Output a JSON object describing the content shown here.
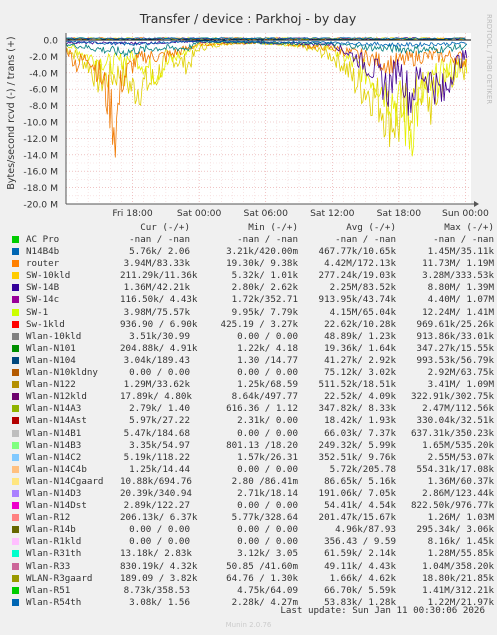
{
  "chart_data": {
    "type": "line",
    "title": "Transfer / device : Parkhoj - by day",
    "ylabel": "Bytes/second rcvd (-) / trans (+)",
    "side_label": "RRDTOOL / TOBI OETIKER",
    "ylim": [
      -20,
      0.8
    ],
    "yticks": [
      0.0,
      -2.0,
      -4.0,
      -6.0,
      -8.0,
      -10.0,
      -12.0,
      -14.0,
      -16.0,
      -18.0,
      -20.0
    ],
    "ytick_labels": [
      "0.0",
      "-2.0 M",
      "-4.0 M",
      "-6.0 M",
      "-8.0 M",
      "-10.0 M",
      "-12.0 M",
      "-14.0 M",
      "-16.0 M",
      "-18.0 M",
      "-20.0 M"
    ],
    "x_ticks": [
      "Fri 18:00",
      "Sat 00:00",
      "Sat 06:00",
      "Sat 12:00",
      "Sat 18:00",
      "Sun 00:00"
    ],
    "x_tick_hours": [
      6,
      12,
      18,
      24,
      30,
      36
    ],
    "xlim_hours": [
      0,
      36.5
    ],
    "grid": true,
    "legend_placement": "bottom",
    "series_profiles": [
      {
        "name": "SW-10kld",
        "color": "#e0d000",
        "points": [
          [
            0,
            -1
          ],
          [
            2,
            -3
          ],
          [
            3,
            -5
          ],
          [
            5,
            -4
          ],
          [
            6,
            -6
          ],
          [
            8,
            -5
          ],
          [
            9,
            -2
          ],
          [
            11,
            -3
          ],
          [
            12,
            -1
          ],
          [
            14,
            -0.5
          ],
          [
            16,
            -0.3
          ],
          [
            18,
            -0.4
          ],
          [
            20,
            -0.5
          ],
          [
            22,
            -1
          ],
          [
            24,
            -2
          ],
          [
            25,
            -3
          ],
          [
            26,
            -5
          ],
          [
            27,
            -6
          ],
          [
            28,
            -7
          ],
          [
            29,
            -9
          ],
          [
            30,
            -10
          ],
          [
            31,
            -8
          ],
          [
            32,
            -6
          ],
          [
            33,
            -8
          ],
          [
            34,
            -5
          ],
          [
            35,
            -4
          ],
          [
            36,
            -3.5
          ]
        ]
      },
      {
        "name": "Sw-1",
        "color": "#e6f000",
        "points": [
          [
            0,
            -0.5
          ],
          [
            2,
            -2
          ],
          [
            4,
            -3
          ],
          [
            6,
            -2
          ],
          [
            8,
            -4
          ],
          [
            10,
            -2
          ],
          [
            12,
            -0.5
          ],
          [
            18,
            -0.3
          ],
          [
            24,
            -1
          ],
          [
            26,
            -3
          ],
          [
            28,
            -5
          ],
          [
            30,
            -8
          ],
          [
            31,
            -11
          ],
          [
            32,
            -7
          ],
          [
            34,
            -4
          ],
          [
            36,
            -3
          ]
        ]
      },
      {
        "name": "router",
        "color": "#f07800",
        "points": [
          [
            0,
            -1
          ],
          [
            1,
            -3
          ],
          [
            2,
            -2
          ],
          [
            3,
            -4
          ],
          [
            4,
            -8
          ],
          [
            4.5,
            -11
          ],
          [
            5,
            -5
          ],
          [
            6,
            -3
          ],
          [
            7,
            -2
          ],
          [
            9,
            -2
          ],
          [
            12,
            -0.5
          ],
          [
            18,
            -0.3
          ],
          [
            20,
            -0.5
          ],
          [
            24,
            -1
          ],
          [
            27,
            -2
          ],
          [
            29,
            -3
          ],
          [
            32,
            -2
          ],
          [
            35,
            -2
          ],
          [
            36,
            -2.5
          ]
        ]
      },
      {
        "name": "SW-14B",
        "color": "#400090",
        "points": [
          [
            0,
            -0.3
          ],
          [
            6,
            -0.4
          ],
          [
            12,
            -0.2
          ],
          [
            24,
            -0.5
          ],
          [
            26,
            -2
          ],
          [
            27,
            -3
          ],
          [
            28,
            -4
          ],
          [
            29,
            -6
          ],
          [
            30,
            -3
          ],
          [
            31,
            -7
          ],
          [
            32,
            -4
          ],
          [
            33,
            -5
          ],
          [
            34,
            -7
          ],
          [
            35,
            -3
          ],
          [
            36,
            -2
          ]
        ]
      },
      {
        "name": "Wlan-N104",
        "color": "#008080",
        "points": [
          [
            0,
            -0.5
          ],
          [
            5,
            -1.5
          ],
          [
            8,
            -1
          ],
          [
            11,
            -1
          ],
          [
            12,
            -0.2
          ],
          [
            24,
            -0.5
          ],
          [
            28,
            -1
          ],
          [
            33,
            -1.2
          ],
          [
            36,
            -0.8
          ]
        ]
      },
      {
        "name": "N14B4b",
        "color": "#0066b3",
        "points": [
          [
            0,
            -0.2
          ],
          [
            6,
            -0.5
          ],
          [
            12,
            -0.1
          ],
          [
            24,
            -0.3
          ],
          [
            30,
            -0.6
          ],
          [
            36,
            -0.4
          ]
        ]
      }
    ],
    "legend_headers": [
      "Cur (-/+)",
      "Min (-/+)",
      "Avg (-/+)",
      "Max (-/+)"
    ],
    "legend": [
      {
        "name": "AC Pro",
        "color": "#00cc00",
        "cur": "-nan / -nan",
        "min": "-nan / -nan",
        "avg": "-nan / -nan",
        "max": "-nan / -nan"
      },
      {
        "name": "N14B4b",
        "color": "#0066b3",
        "cur": "5.76k/ 2.06",
        "min": "3.21k/420.00m",
        "avg": "467.77k/10.65k",
        "max": "1.45M/35.11k"
      },
      {
        "name": "router",
        "color": "#ff8000",
        "cur": "3.94M/83.33k",
        "min": "19.30k/ 9.38k",
        "avg": "4.42M/172.13k",
        "max": "11.73M/ 1.19M"
      },
      {
        "name": "SW-10kld",
        "color": "#ffcc00",
        "cur": "211.29k/11.36k",
        "min": "5.32k/ 1.01k",
        "avg": "277.24k/19.03k",
        "max": "3.28M/333.53k"
      },
      {
        "name": "SW-14B",
        "color": "#330099",
        "cur": "1.36M/42.21k",
        "min": "2.80k/ 2.62k",
        "avg": "2.25M/83.52k",
        "max": "8.80M/ 1.39M"
      },
      {
        "name": "SW-14c",
        "color": "#990099",
        "cur": "116.50k/ 4.43k",
        "min": "1.72k/352.71",
        "avg": "913.95k/43.74k",
        "max": "4.40M/ 1.07M"
      },
      {
        "name": "SW-1",
        "color": "#ccff00",
        "cur": "3.98M/75.57k",
        "min": "9.95k/ 7.79k",
        "avg": "4.15M/65.04k",
        "max": "12.24M/ 1.41M"
      },
      {
        "name": "Sw-1kld",
        "color": "#ff0000",
        "cur": "936.90 / 6.90k",
        "min": "425.19 / 3.27k",
        "avg": "22.62k/10.28k",
        "max": "969.61k/25.26k"
      },
      {
        "name": "Wlan-10kld",
        "color": "#808080",
        "cur": "3.51k/30.99",
        "min": "0.00 / 0.00",
        "avg": "48.89k/ 1.23k",
        "max": "913.86k/33.01k"
      },
      {
        "name": "Wlan-N101",
        "color": "#008f00",
        "cur": "204.88k/ 4.91k",
        "min": "1.22k/ 4.18",
        "avg": "19.36k/ 1.64k",
        "max": "347.27k/15.55k"
      },
      {
        "name": "Wlan-N104",
        "color": "#00487d",
        "cur": "3.04k/189.43",
        "min": "1.30 /14.77",
        "avg": "41.27k/ 2.92k",
        "max": "993.53k/56.79k"
      },
      {
        "name": "Wlan-N10kldny",
        "color": "#b35a00",
        "cur": "0.00 / 0.00",
        "min": "0.00 / 0.00",
        "avg": "75.12k/ 3.02k",
        "max": "2.92M/63.75k"
      },
      {
        "name": "Wlan-N122",
        "color": "#b38f00",
        "cur": "1.29M/33.62k",
        "min": "1.25k/68.59",
        "avg": "511.52k/18.51k",
        "max": "3.41M/ 1.09M"
      },
      {
        "name": "Wlan-N12kld",
        "color": "#6b006b",
        "cur": "17.89k/ 4.80k",
        "min": "8.64k/497.77",
        "avg": "22.52k/ 4.09k",
        "max": "322.91k/302.75k"
      },
      {
        "name": "Wlan-N14A3",
        "color": "#8fb300",
        "cur": "2.79k/ 1.40",
        "min": "616.36 / 1.12",
        "avg": "347.82k/ 8.33k",
        "max": "2.47M/112.56k"
      },
      {
        "name": "Wlan-N14Ast",
        "color": "#b30000",
        "cur": "5.97k/27.22",
        "min": "2.31k/ 0.00",
        "avg": "18.42k/ 1.93k",
        "max": "330.04k/32.51k"
      },
      {
        "name": "Wlan-N14B1",
        "color": "#bebebe",
        "cur": "5.47k/184.68",
        "min": "0.00 / 0.00",
        "avg": "66.03k/ 7.37k",
        "max": "637.31k/350.23k"
      },
      {
        "name": "Wlan-N14B3",
        "color": "#80ff80",
        "cur": "3.35k/54.97",
        "min": "801.13 /18.20",
        "avg": "249.32k/ 5.99k",
        "max": "1.65M/535.20k"
      },
      {
        "name": "Wlan-N14C2",
        "color": "#80c9ff",
        "cur": "5.19k/118.22",
        "min": "1.57k/26.31",
        "avg": "352.51k/ 9.76k",
        "max": "2.55M/53.07k"
      },
      {
        "name": "Wlan-N14C4b",
        "color": "#ffc080",
        "cur": "1.25k/14.44",
        "min": "0.00 / 0.00",
        "avg": "5.72k/205.78",
        "max": "554.31k/17.08k"
      },
      {
        "name": "Wlan-N14Cgaard",
        "color": "#ffe680",
        "cur": "10.88k/694.76",
        "min": "2.80 /86.41m",
        "avg": "86.65k/ 5.16k",
        "max": "1.36M/60.37k"
      },
      {
        "name": "Wlan-N14D3",
        "color": "#aa80ff",
        "cur": "20.39k/340.94",
        "min": "2.71k/18.14",
        "avg": "191.06k/ 7.05k",
        "max": "2.86M/123.44k"
      },
      {
        "name": "Wlan-N14Dst",
        "color": "#ee00cc",
        "cur": "2.89k/122.27",
        "min": "0.00 / 0.00",
        "avg": "54.41k/ 4.54k",
        "max": "822.50k/976.77k"
      },
      {
        "name": "Wlan-R12",
        "color": "#ff8080",
        "cur": "206.13k/ 6.37k",
        "min": "5.77k/328.64",
        "avg": "201.47k/15.67k",
        "max": "1.26M/ 1.03M"
      },
      {
        "name": "Wlan-R14b",
        "color": "#666600",
        "cur": "0.00 / 0.00",
        "min": "0.00 / 0.00",
        "avg": "4.96k/87.93",
        "max": "295.34k/ 3.06k"
      },
      {
        "name": "Wlan-R1kld",
        "color": "#ffbfff",
        "cur": "0.00 / 0.00",
        "min": "0.00 / 0.00",
        "avg": "356.43 / 9.59",
        "max": "8.16k/ 1.45k"
      },
      {
        "name": "Wlan-R31th",
        "color": "#00ffcc",
        "cur": "13.18k/ 2.83k",
        "min": "3.12k/ 3.05",
        "avg": "61.59k/ 2.14k",
        "max": "1.28M/55.85k"
      },
      {
        "name": "Wlan-R33",
        "color": "#cc6699",
        "cur": "830.19k/ 4.32k",
        "min": "50.85 /41.60m",
        "avg": "49.11k/ 4.43k",
        "max": "1.04M/358.20k"
      },
      {
        "name": "WLAN-R3gaard",
        "color": "#999900",
        "cur": "189.09 / 3.82k",
        "min": "64.76 / 1.30k",
        "avg": "1.66k/ 4.62k",
        "max": "18.80k/21.85k"
      },
      {
        "name": "Wlan-R51",
        "color": "#00cc00",
        "cur": "8.73k/358.53",
        "min": "4.75k/64.09",
        "avg": "66.70k/ 5.59k",
        "max": "1.41M/312.21k"
      },
      {
        "name": "Wlan-R54th",
        "color": "#0066b3",
        "cur": "3.08k/ 1.56",
        "min": "2.28k/ 4.27m",
        "avg": "53.83k/ 1.28k",
        "max": "1.22M/21.97k"
      }
    ]
  },
  "footer": {
    "last_update": "Last update:  Sun Jan 11 00:30:06 2026",
    "munin": "Munin 2.0.76"
  }
}
